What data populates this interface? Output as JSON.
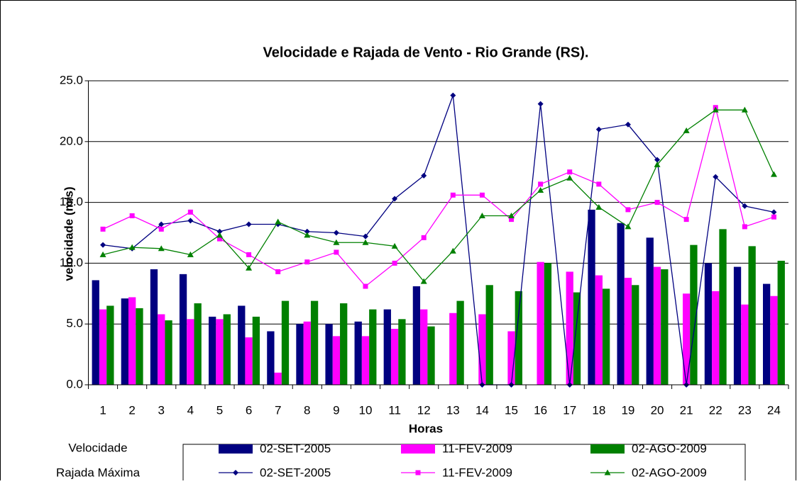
{
  "chart_data": {
    "type": "combo",
    "title": "Velocidade e Rajada de Vento - Rio Grande (RS).",
    "x_label": "Horas",
    "y_label": "velocidade (m/s)",
    "categories": [
      "1",
      "2",
      "3",
      "4",
      "5",
      "6",
      "7",
      "8",
      "9",
      "10",
      "11",
      "12",
      "13",
      "14",
      "15",
      "16",
      "17",
      "18",
      "19",
      "20",
      "21",
      "22",
      "23",
      "24"
    ],
    "ylim": [
      0,
      25
    ],
    "yticks": [
      {
        "value": 0,
        "label": "0.0"
      },
      {
        "value": 5,
        "label": "5.0"
      },
      {
        "value": 10,
        "label": "10.0"
      },
      {
        "value": 15,
        "label": "15.0"
      },
      {
        "value": 20,
        "label": "20.0"
      },
      {
        "value": 25,
        "label": "25.0"
      }
    ],
    "grid": true,
    "legend_groups": [
      "Velocidade",
      "Rajada Máxima"
    ],
    "series": [
      {
        "name": "02-SET-2005",
        "type": "bar",
        "color": "#000080",
        "values": [
          8.6,
          7.1,
          9.5,
          9.1,
          5.6,
          6.5,
          4.4,
          5.0,
          5.0,
          5.2,
          6.2,
          8.1,
          0,
          0,
          0,
          0,
          0,
          14.4,
          13.3,
          12.1,
          0,
          10.0,
          9.7,
          8.3
        ]
      },
      {
        "name": "11-FEV-2009",
        "type": "bar",
        "color": "#ff00ff",
        "values": [
          6.2,
          7.2,
          5.8,
          5.4,
          5.4,
          3.9,
          1.0,
          5.2,
          4.0,
          4.0,
          4.6,
          6.2,
          5.9,
          5.8,
          4.4,
          10.1,
          9.3,
          9.0,
          8.8,
          9.7,
          7.5,
          7.7,
          6.6,
          7.3
        ]
      },
      {
        "name": "02-AGO-2009",
        "type": "bar",
        "color": "#008000",
        "values": [
          6.5,
          6.3,
          5.3,
          6.7,
          5.8,
          5.6,
          6.9,
          6.9,
          6.7,
          6.2,
          5.4,
          4.8,
          6.9,
          8.2,
          7.7,
          10.0,
          7.6,
          7.9,
          8.2,
          9.5,
          11.5,
          12.8,
          11.4,
          10.2
        ]
      },
      {
        "name": "02-SET-2005",
        "type": "line",
        "marker": "diamond",
        "color": "#000080",
        "values": [
          11.5,
          11.2,
          13.2,
          13.5,
          12.6,
          13.2,
          13.2,
          12.6,
          12.5,
          12.2,
          15.3,
          17.2,
          23.8,
          0,
          0,
          23.1,
          0,
          21.0,
          21.4,
          18.5,
          0,
          17.1,
          14.7,
          14.2
        ]
      },
      {
        "name": "11-FEV-2009",
        "type": "line",
        "marker": "square",
        "color": "#ff00ff",
        "values": [
          12.8,
          13.9,
          12.8,
          14.2,
          12.0,
          10.7,
          9.3,
          10.1,
          10.9,
          8.1,
          10.0,
          12.1,
          15.6,
          15.6,
          13.6,
          16.5,
          17.5,
          16.5,
          14.4,
          15.0,
          13.6,
          22.8,
          13.0,
          13.8
        ]
      },
      {
        "name": "02-AGO-2009",
        "type": "line",
        "marker": "triangle",
        "color": "#008000",
        "values": [
          10.7,
          11.3,
          11.2,
          10.7,
          12.3,
          9.6,
          13.4,
          12.3,
          11.7,
          11.7,
          11.4,
          8.5,
          11.0,
          13.9,
          13.9,
          16.0,
          17.0,
          14.6,
          13.0,
          18.1,
          20.9,
          22.6,
          22.6,
          17.3
        ]
      }
    ]
  }
}
